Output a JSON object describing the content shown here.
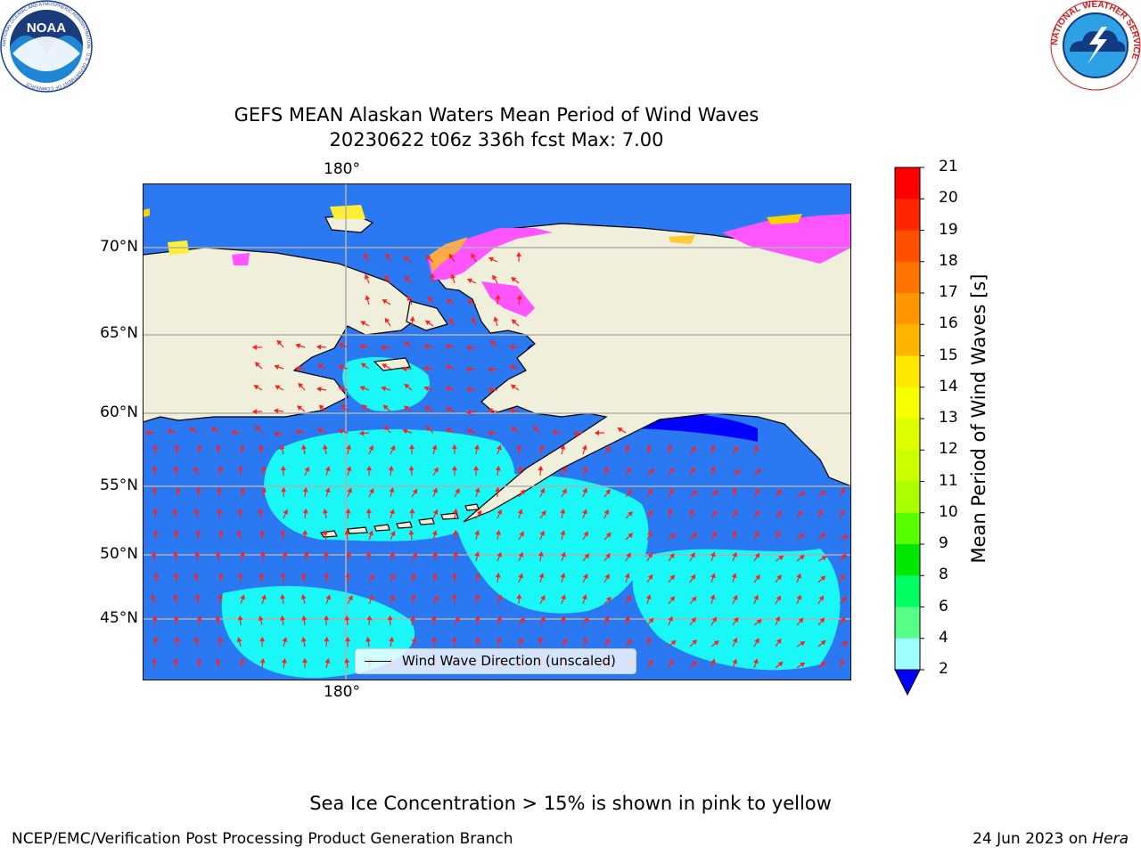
{
  "title": {
    "line1": "GEFS MEAN Alaskan Waters Mean Period of Wind Waves",
    "line2": "20230622 t06z 336h fcst   Max: 7.00"
  },
  "logos": {
    "noaa": {
      "text": "NOAA",
      "ring_text": "NATIONAL OCEANIC AND ATMOSPHERIC ADMINISTRATION · U.S. DEPARTMENT OF COMMERCE"
    },
    "nws": {
      "ring_text": "NATIONAL WEATHER SERVICE"
    }
  },
  "map": {
    "lon_top_label": "180°",
    "lon_bottom_label": "180°",
    "lat_labels": [
      "70°N",
      "65°N",
      "60°N",
      "55°N",
      "50°N",
      "45°N"
    ],
    "legend_label": "Wind Wave Direction (unscaled)"
  },
  "colorbar": {
    "title": "Mean Period of Wind Waves [s]",
    "ticks": [
      "21",
      "20",
      "19",
      "18",
      "17",
      "16",
      "15",
      "14",
      "13",
      "12",
      "11",
      "10",
      "9",
      "8",
      "6",
      "4",
      "2"
    ],
    "colors": [
      "#ff0000",
      "#ff2600",
      "#ff5000",
      "#ff7400",
      "#ff9600",
      "#ffb400",
      "#ffe800",
      "#f7ff00",
      "#deff00",
      "#ccff00",
      "#aaff00",
      "#58ff00",
      "#00e800",
      "#00ff60",
      "#55ff88",
      "#a0ffff",
      "#55ffff",
      "#00ffff",
      "#0077ff"
    ],
    "under_color": "#0000ff"
  },
  "colors": {
    "land": "#efefdc",
    "ocean_deep": "#2b78f3",
    "ocean_light": "#19f7f7",
    "arrow": "#ff2020",
    "grid": "#b0b0b0"
  },
  "footer": {
    "note": "Sea Ice Concentration > 15% is shown in pink to yellow",
    "left": "NCEP/EMC/Verification Post Processing Product Generation Branch",
    "right_date": "24 Jun 2023 on",
    "right_host": "Hera"
  }
}
